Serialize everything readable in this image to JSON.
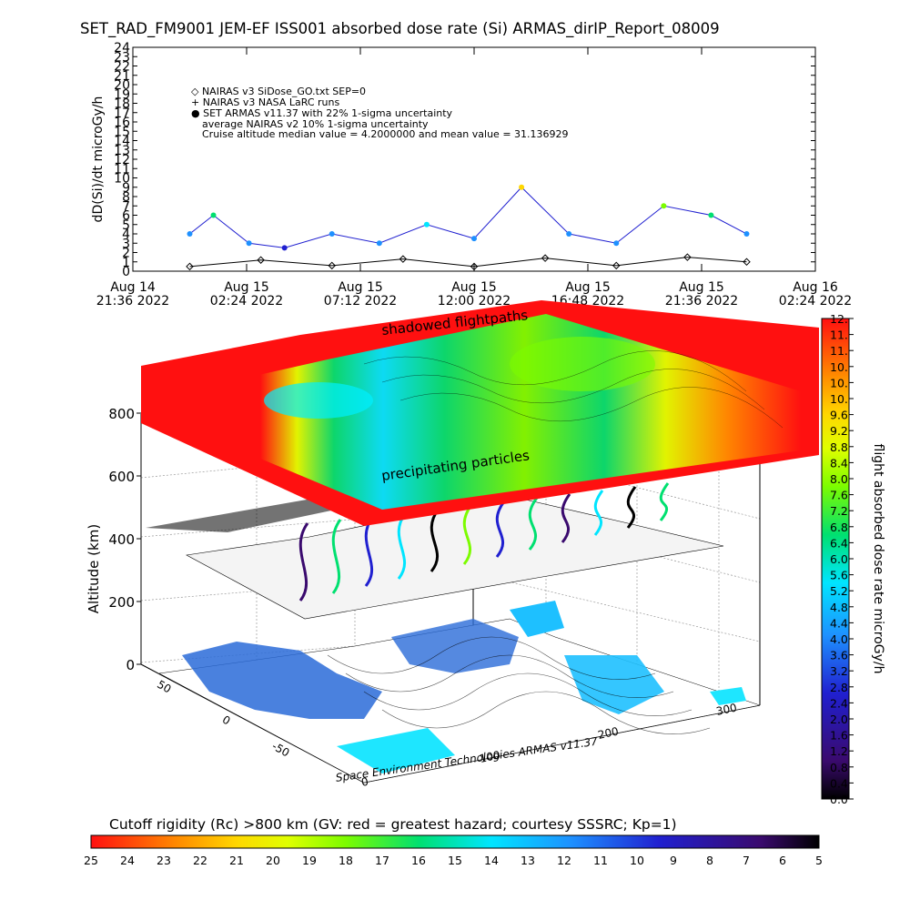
{
  "title": "SET_RAD_FM9001  JEM-EF ISS001 absorbed dose rate (Si) ARMAS_dirIP_Report_08009",
  "top_chart": {
    "ylabel": "dD(Si)/dt microGy/h",
    "legend": [
      "◇ NAIRAS v3 SiDose_GO.txt SEP=0",
      "+ NAIRAS v3 NASA LaRC runs",
      "● SET ARMAS v11.37 with 22% 1-sigma uncertainty",
      "average NAIRAS v2 10% 1-sigma uncertainty",
      "Cruise altitude median value = 4.2000000 and mean value = 31.136929"
    ],
    "xticks": [
      {
        "line1": "Aug 14",
        "line2": "21:36 2022"
      },
      {
        "line1": "Aug 15",
        "line2": "02:24 2022"
      },
      {
        "line1": "Aug 15",
        "line2": "07:12 2022"
      },
      {
        "line1": "Aug 15",
        "line2": "12:00 2022"
      },
      {
        "line1": "Aug 15",
        "line2": "16:48 2022"
      },
      {
        "line1": "Aug 15",
        "line2": "21:36 2022"
      },
      {
        "line1": "Aug 16",
        "line2": "02:24 2022"
      }
    ],
    "yticks": [
      "0",
      "1",
      "2",
      "3",
      "4",
      "5",
      "6",
      "7",
      "8",
      "9",
      "10",
      "11",
      "12",
      "13",
      "14",
      "15",
      "16",
      "17",
      "18",
      "19",
      "20",
      "21",
      "22",
      "23",
      "24"
    ]
  },
  "chart_data": [
    {
      "type": "scatter",
      "title": "SET_RAD_FM9001  JEM-EF ISS001 absorbed dose rate (Si) ARMAS_dirIP_Report_08009",
      "ylabel": "dD(Si)/dt microGy/h",
      "ylim": [
        0,
        24
      ],
      "x_range": [
        "2022-08-14 21:36",
        "2022-08-16 02:24"
      ],
      "series": [
        {
          "name": "NAIRAS v3 SiDose_GO.txt SEP=0",
          "x": [
            "2022-08-15 00:00",
            "2022-08-15 03:00",
            "2022-08-15 06:00",
            "2022-08-15 09:00",
            "2022-08-15 12:00",
            "2022-08-15 15:00",
            "2022-08-15 18:00",
            "2022-08-15 21:00",
            "2022-08-15 23:30"
          ],
          "values": [
            0.5,
            1.2,
            0.6,
            1.3,
            0.5,
            1.4,
            0.6,
            1.5,
            1.0
          ]
        },
        {
          "name": "SET ARMAS v11.37 with 22% 1-sigma uncertainty",
          "x": [
            "2022-08-15 00:00",
            "2022-08-15 01:00",
            "2022-08-15 02:30",
            "2022-08-15 04:00",
            "2022-08-15 06:00",
            "2022-08-15 08:00",
            "2022-08-15 10:00",
            "2022-08-15 12:00",
            "2022-08-15 14:00",
            "2022-08-15 16:00",
            "2022-08-15 18:00",
            "2022-08-15 20:00",
            "2022-08-15 22:00",
            "2022-08-15 23:30"
          ],
          "values": [
            4,
            6,
            3,
            2.5,
            4,
            3,
            5,
            3.5,
            9,
            4,
            3,
            7,
            6,
            4
          ]
        }
      ],
      "median": 4.2,
      "mean": 31.136929
    },
    {
      "type": "heatmap",
      "title": "",
      "xlabel": "",
      "ylabel": "Altitude (km)",
      "zticks": [
        "0",
        "200",
        "400",
        "600",
        "800"
      ],
      "lon_ticks": [
        "0",
        "100",
        "200",
        "300"
      ],
      "lat_ticks": [
        "-50",
        "0",
        "50"
      ],
      "top_layer_labels": [
        "shadowed flightpaths",
        "precipitating particles"
      ],
      "colorbar_right": {
        "label": "flight absorbed dose rate microGy/h",
        "ticks": [
          "0.0",
          "0.4",
          "0.8",
          "1.2",
          "1.6",
          "2.0",
          "2.4",
          "2.8",
          "3.2",
          "3.6",
          "4.0",
          "4.4",
          "4.8",
          "5.2",
          "5.6",
          "6.0",
          "6.4",
          "6.8",
          "7.2",
          "7.6",
          "8.0",
          "8.4",
          "8.8",
          "9.2",
          "9.6",
          "10.",
          "10.",
          "10.",
          "11.",
          "11.",
          "12."
        ]
      },
      "colorbar_bottom": {
        "label": "Cutoff rigidity (Rc) >800 km (GV: red = greatest hazard; courtesy SSSRC; Kp=1)",
        "ticks": [
          "25",
          "24",
          "23",
          "22",
          "21",
          "20",
          "19",
          "18",
          "17",
          "16",
          "15",
          "14",
          "13",
          "12",
          "11",
          "10",
          "9",
          "8",
          "7",
          "6",
          "5"
        ]
      }
    }
  ],
  "credit": "Space Environment Technologies ARMAS v11.37",
  "colors": {
    "rainbow": [
      "#000000",
      "#3a0a6e",
      "#2020d0",
      "#1e90ff",
      "#00e5ff",
      "#00e070",
      "#7cfc00",
      "#e0ff00",
      "#ffd700",
      "#ff8c00",
      "#ff2000"
    ]
  }
}
